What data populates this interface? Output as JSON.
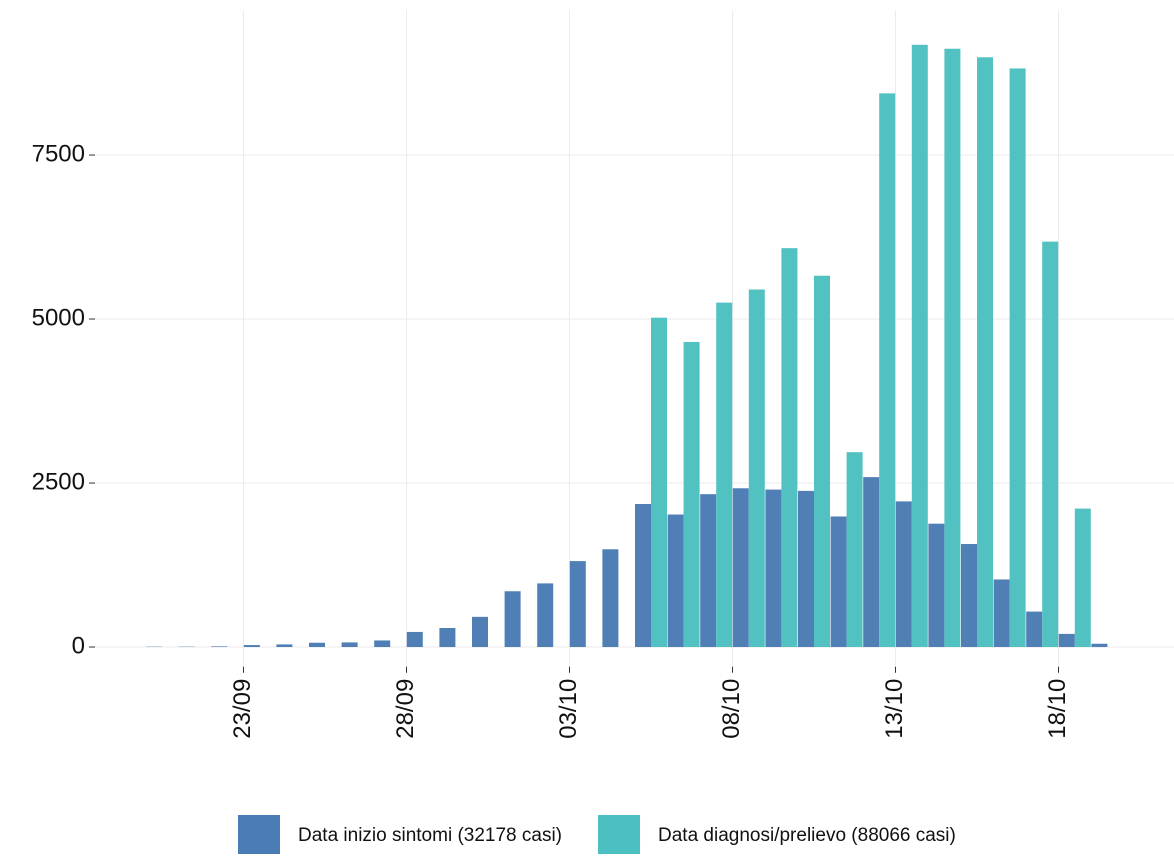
{
  "chart_data": {
    "type": "bar",
    "categories": [
      null,
      null,
      null,
      "23/09",
      null,
      null,
      null,
      null,
      "28/09",
      null,
      null,
      null,
      null,
      "03/10",
      null,
      null,
      null,
      null,
      "08/10",
      null,
      null,
      null,
      null,
      "13/10",
      null,
      null,
      null,
      null,
      "18/10",
      null
    ],
    "series": [
      {
        "name": "Data inizio sintomi (32178 casi)",
        "color": "#4a7bb4",
        "values": [
          5,
          5,
          10,
          30,
          40,
          65,
          70,
          100,
          230,
          290,
          460,
          850,
          970,
          1310,
          1490,
          2180,
          2020,
          2330,
          2420,
          2400,
          2380,
          1990,
          2590,
          2220,
          1880,
          1570,
          1030,
          540,
          200,
          50
        ]
      },
      {
        "name": "Data diagnosi/prelievo (88066 casi)",
        "color": "#4cbfc0",
        "values": [
          null,
          null,
          null,
          null,
          null,
          null,
          null,
          null,
          null,
          null,
          null,
          null,
          null,
          null,
          null,
          5020,
          4650,
          5250,
          5450,
          6080,
          5660,
          2970,
          8440,
          9180,
          9120,
          8990,
          8820,
          6180,
          2110,
          null
        ]
      }
    ],
    "ylim": [
      -300,
      9700
    ],
    "yticks": [
      0,
      2500,
      5000,
      7500
    ],
    "grid": true,
    "legend": "bottom"
  }
}
